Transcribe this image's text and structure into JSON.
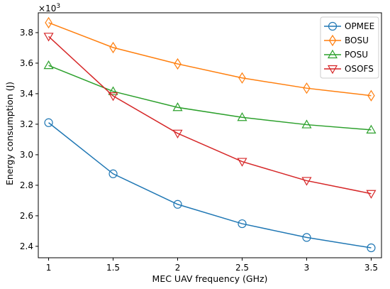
{
  "chart_data": {
    "type": "line",
    "title": "",
    "xlabel": "MEC UAV frequency (GHz)",
    "ylabel": "Energy consumption (J)",
    "y_multiplier_label": "×10³",
    "x": [
      1,
      1.5,
      2,
      2.5,
      3,
      3.5
    ],
    "x_tick_labels": [
      "1",
      "1.5",
      "2",
      "2.5",
      "3",
      "3.5"
    ],
    "xlim": [
      0.92,
      3.58
    ],
    "y_ticks": [
      2.4,
      2.6,
      2.8,
      3.0,
      3.2,
      3.4,
      3.6,
      3.8
    ],
    "y_tick_labels": [
      "2.4",
      "2.6",
      "2.8",
      "3.0",
      "3.2",
      "3.4",
      "3.6",
      "3.8"
    ],
    "ylim": [
      2.325,
      3.93
    ],
    "grid": false,
    "legend_position": "top-right",
    "series": [
      {
        "name": "OPMEE",
        "color": "#1f77b4",
        "marker": "circle",
        "values": [
          3.21,
          2.875,
          2.675,
          2.548,
          2.458,
          2.39
        ]
      },
      {
        "name": "BOSU",
        "color": "#ff7f0e",
        "marker": "diamond",
        "values": [
          3.865,
          3.702,
          3.595,
          3.503,
          3.436,
          3.387
        ]
      },
      {
        "name": "POSU",
        "color": "#2ca02c",
        "marker": "triangle-up",
        "values": [
          3.585,
          3.415,
          3.31,
          3.245,
          3.197,
          3.163
        ]
      },
      {
        "name": "OSOFS",
        "color": "#d62728",
        "marker": "triangle-down",
        "values": [
          3.775,
          3.385,
          3.14,
          2.955,
          2.83,
          2.745
        ]
      }
    ]
  }
}
